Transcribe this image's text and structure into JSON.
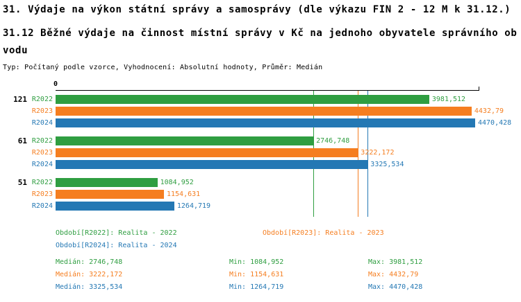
{
  "header": {
    "line1": "31. Výdaje na výkon státní správy a samosprávy (dle výkazu FIN 2 - 12 M k 31.12.)",
    "line2": "31.12 Běžné výdaje na činnost místní správy v Kč na jednoho obyvatele správního obvodu",
    "line3": "Typ: Počítaný podle vzorce, Vyhodnocení: Absolutní hodnoty, Průměr: Medián"
  },
  "colors": {
    "green": "#2f9e41",
    "orange": "#f57e20",
    "blue": "#2478b4",
    "axis": "#000000"
  },
  "chart_data": {
    "type": "bar",
    "orientation": "horizontal",
    "title": "31.12 Běžné výdaje na činnost místní správy v Kč na jednoho obyvatele správního obvodu",
    "categories": [
      "121",
      "61",
      "51"
    ],
    "series": [
      {
        "name": "R2022",
        "color": "#2f9e41",
        "values": [
          3981.512,
          2746.748,
          1084.952
        ],
        "value_labels": [
          "3981,512",
          "2746,748",
          "1084,952"
        ]
      },
      {
        "name": "R2023",
        "color": "#f57e20",
        "values": [
          4432.79,
          3222.172,
          1154.631
        ],
        "value_labels": [
          "4432,79",
          "3222,172",
          "1154,631"
        ]
      },
      {
        "name": "R2024",
        "color": "#2478b4",
        "values": [
          4470.428,
          3325.534,
          1264.719
        ],
        "value_labels": [
          "4470,428",
          "3325,534",
          "1264,719"
        ]
      }
    ],
    "xlim": [
      0,
      4515
    ],
    "axis_zero_label": "0",
    "grid": false,
    "legend_position": "bottom",
    "median_lines": [
      {
        "value": 2746.748,
        "color": "#2f9e41"
      },
      {
        "value": 3222.172,
        "color": "#f57e20"
      },
      {
        "value": 3325.534,
        "color": "#2478b4"
      }
    ]
  },
  "legend": [
    {
      "label": "Období[R2022]: Realita - 2022",
      "color": "#2f9e41"
    },
    {
      "label": "Období[R2023]: Realita - 2023",
      "color": "#f57e20"
    },
    {
      "label": "Období[R2024]: Realita - 2024",
      "color": "#2478b4"
    }
  ],
  "stats": [
    {
      "median": "Medián: 2746,748",
      "min": "Min: 1084,952",
      "max": "Max: 3981,512",
      "color": "#2f9e41"
    },
    {
      "median": "Medián: 3222,172",
      "min": "Min: 1154,631",
      "max": "Max: 4432,79",
      "color": "#f57e20"
    },
    {
      "median": "Medián: 3325,534",
      "min": "Min: 1264,719",
      "max": "Max: 4470,428",
      "color": "#2478b4"
    }
  ]
}
